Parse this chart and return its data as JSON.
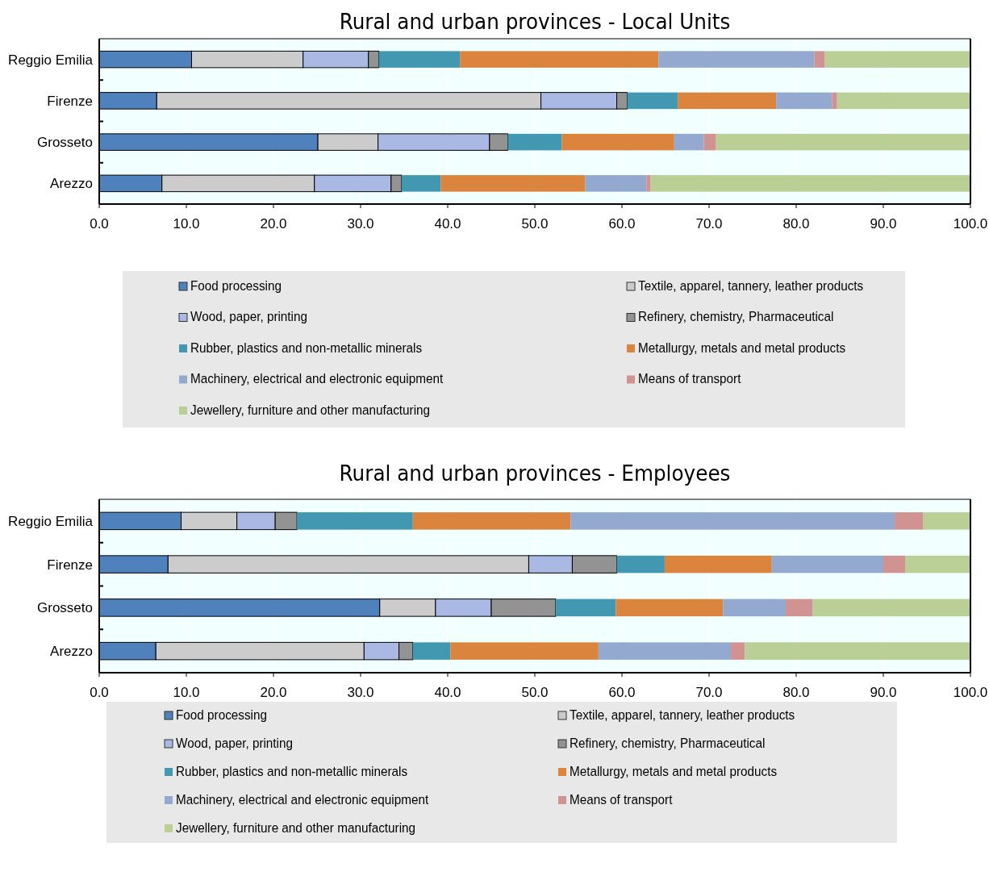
{
  "chart_data": [
    {
      "type": "bar",
      "orientation": "horizontal",
      "stacked": true,
      "title": "Rural and urban provinces - Local Units",
      "categories": [
        "Reggio Emilia",
        "Firenze",
        "Grosseto",
        "Arezzo"
      ],
      "xlim": [
        0,
        100
      ],
      "xticks": [
        {
          "value": 0,
          "label": "0.0"
        },
        {
          "value": 10,
          "label": "10.0"
        },
        {
          "value": 20,
          "label": "20.0"
        },
        {
          "value": 30,
          "label": "30.0"
        },
        {
          "value": 40,
          "label": "40.0"
        },
        {
          "value": 50,
          "label": "50.0"
        },
        {
          "value": 60,
          "label": "60.0"
        },
        {
          "value": 70,
          "label": "70.0"
        },
        {
          "value": 80,
          "label": "80.0"
        },
        {
          "value": 90,
          "label": "90.0"
        },
        {
          "value": 100,
          "label": "100.0"
        }
      ],
      "grid": "x",
      "legend": "bottom",
      "series": [
        {
          "name": "Food processing",
          "color": "#4f81bd",
          "values": [
            10.6,
            6.6,
            25.1,
            7.2
          ]
        },
        {
          "name": "Textile, apparel, tannery, leather products",
          "color": "#cccccc",
          "values": [
            12.8,
            44.1,
            6.9,
            17.5
          ]
        },
        {
          "name": "Wood, paper, printing",
          "color": "#a9b9e3",
          "values": [
            7.5,
            8.7,
            12.8,
            8.8
          ]
        },
        {
          "name": "Refinery, chemistry, Pharmaceutical",
          "color": "#939393",
          "values": [
            1.2,
            1.2,
            2.1,
            1.2
          ]
        },
        {
          "name": "Rubber, plastics and non-metallic minerals",
          "color": "#4298b0",
          "values": [
            9.3,
            5.8,
            6.2,
            4.5
          ]
        },
        {
          "name": "Metallurgy, metals and metal products",
          "color": "#db843d",
          "values": [
            22.8,
            11.3,
            12.9,
            16.6
          ]
        },
        {
          "name": "Machinery, electrical and electronic equipment",
          "color": "#93a9d0",
          "values": [
            17.9,
            6.4,
            3.4,
            7.0
          ]
        },
        {
          "name": "Means of transport",
          "color": "#d19392",
          "values": [
            1.2,
            0.6,
            1.4,
            0.5
          ]
        },
        {
          "name": "Jewellery, furniture and other manufacturing",
          "color": "#b9cf96",
          "values": [
            16.7,
            15.3,
            29.2,
            36.7
          ]
        }
      ]
    },
    {
      "type": "bar",
      "orientation": "horizontal",
      "stacked": true,
      "title": "Rural and urban provinces - Employees",
      "categories": [
        "Reggio Emilia",
        "Firenze",
        "Grosseto",
        "Arezzo"
      ],
      "xlim": [
        0,
        100
      ],
      "xticks": [
        {
          "value": 0,
          "label": "0.0"
        },
        {
          "value": 10,
          "label": "10.0"
        },
        {
          "value": 20,
          "label": "20.0"
        },
        {
          "value": 30,
          "label": "30.0"
        },
        {
          "value": 40,
          "label": "40.0"
        },
        {
          "value": 50,
          "label": "50.0"
        },
        {
          "value": 60,
          "label": "60.0"
        },
        {
          "value": 70,
          "label": "70.0"
        },
        {
          "value": 80,
          "label": "80.0"
        },
        {
          "value": 90,
          "label": "90.0"
        },
        {
          "value": 100,
          "label": "100.0"
        }
      ],
      "grid": "x",
      "legend": "bottom",
      "series": [
        {
          "name": "Food processing",
          "color": "#4f81bd",
          "values": [
            9.4,
            7.9,
            32.2,
            6.5
          ]
        },
        {
          "name": "Textile, apparel, tannery, leather products",
          "color": "#cccccc",
          "values": [
            6.4,
            41.4,
            6.4,
            23.9
          ]
        },
        {
          "name": "Wood, paper, printing",
          "color": "#a9b9e3",
          "values": [
            4.4,
            5.0,
            6.4,
            4.0
          ]
        },
        {
          "name": "Refinery, chemistry, Pharmaceutical",
          "color": "#939393",
          "values": [
            2.5,
            5.1,
            7.4,
            1.6
          ]
        },
        {
          "name": "Rubber, plastics and non-metallic minerals",
          "color": "#4298b0",
          "values": [
            13.3,
            5.5,
            6.9,
            4.3
          ]
        },
        {
          "name": "Metallurgy, metals and metal products",
          "color": "#db843d",
          "values": [
            18.1,
            12.3,
            12.3,
            17.0
          ]
        },
        {
          "name": "Machinery, electrical and electronic equipment",
          "color": "#93a9d0",
          "values": [
            37.2,
            12.8,
            7.2,
            15.2
          ]
        },
        {
          "name": "Means of transport",
          "color": "#d19392",
          "values": [
            3.3,
            2.5,
            3.1,
            1.6
          ]
        },
        {
          "name": "Jewellery, furniture and other manufacturing",
          "color": "#b9cf96",
          "values": [
            5.4,
            7.5,
            18.1,
            25.9
          ]
        }
      ]
    }
  ]
}
